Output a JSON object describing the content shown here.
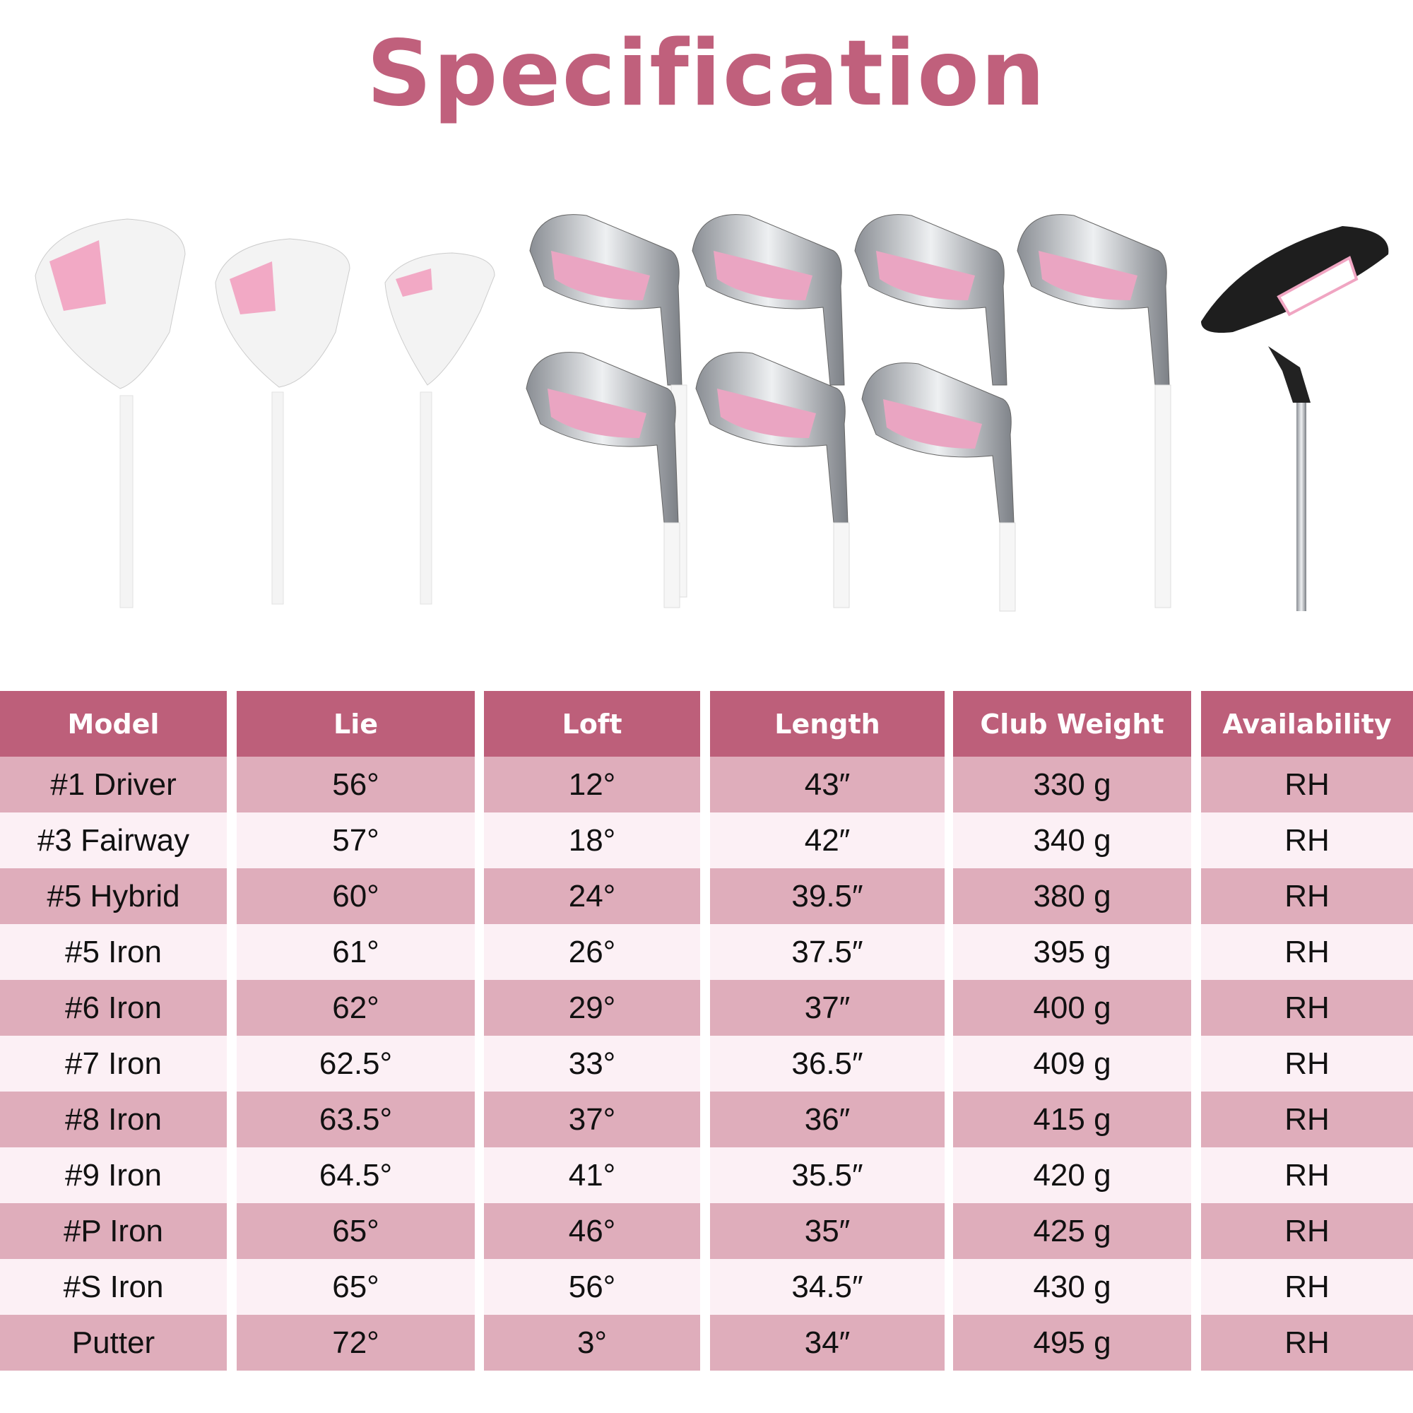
{
  "title": "Specification",
  "colors": {
    "title": "#c0607c",
    "header": "#bd5f7a",
    "row_dark": "#dfadbb",
    "row_light": "#fcf0f5"
  },
  "clubs_image": [
    "driver",
    "fairway-wood",
    "hybrid",
    "iron-5",
    "iron-6",
    "iron-7",
    "iron-8",
    "iron-9",
    "iron-p",
    "iron-s",
    "putter"
  ],
  "table": {
    "headers": [
      "Model",
      "Lie",
      "Loft",
      "Length",
      "Club Weight",
      "Availability"
    ],
    "rows": [
      [
        "#1 Driver",
        "56°",
        "12°",
        "43″",
        "330 g",
        "RH"
      ],
      [
        "#3 Fairway",
        "57°",
        "18°",
        "42″",
        "340 g",
        "RH"
      ],
      [
        "#5 Hybrid",
        "60°",
        "24°",
        "39.5″",
        "380 g",
        "RH"
      ],
      [
        "#5 Iron",
        "61°",
        "26°",
        "37.5″",
        "395 g",
        "RH"
      ],
      [
        "#6 Iron",
        "62°",
        "29°",
        "37″",
        "400 g",
        "RH"
      ],
      [
        "#7 Iron",
        "62.5°",
        "33°",
        "36.5″",
        "409 g",
        "RH"
      ],
      [
        "#8 Iron",
        "63.5°",
        "37°",
        "36″",
        "415 g",
        "RH"
      ],
      [
        "#9 Iron",
        "64.5°",
        "41°",
        "35.5″",
        "420 g",
        "RH"
      ],
      [
        "#P Iron",
        "65°",
        "46°",
        "35″",
        "425 g",
        "RH"
      ],
      [
        "#S Iron",
        "65°",
        "56°",
        "34.5″",
        "430 g",
        "RH"
      ],
      [
        "Putter",
        "72°",
        "3°",
        "34″",
        "495 g",
        "RH"
      ]
    ]
  }
}
